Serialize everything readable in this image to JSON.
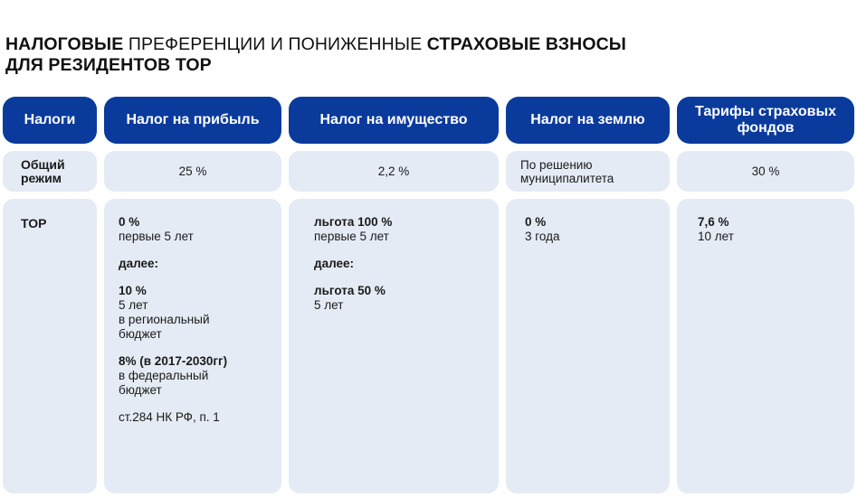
{
  "title": {
    "p1_bold": "НАЛОГОВЫЕ",
    "p2": " ПРЕФЕРЕНЦИИ И ПОНИЖЕННЫЕ ",
    "p3_bold": "СТРАХОВЫЕ ВЗНОСЫ",
    "line2_bold": "ДЛЯ РЕЗИДЕНТОВ ТОР"
  },
  "headers": {
    "col0": "Налоги",
    "col1": "Налог на прибыль",
    "col2": "Налог на имущество",
    "col3": "Налог на землю",
    "col4": "Тарифы страховых фондов"
  },
  "general": {
    "label": "Общий режим",
    "profit": "25 %",
    "property": "2,2 %",
    "land": "По решению муниципалитета",
    "insurance": "30 %"
  },
  "tor": {
    "label": "ТОР",
    "profit": {
      "b1_rate": "0 %",
      "b1_term": "первые 5 лет",
      "further": "далее:",
      "b2_rate": "10 %",
      "b2_term": "5 лет",
      "b2_note1": "в региональный",
      "b2_note2": "бюджет",
      "b3_rate": "8% (в 2017-2030гг)",
      "b3_note1": "в федеральный",
      "b3_note2": "бюджет",
      "ref": "ст.284 НК РФ, п. 1"
    },
    "property": {
      "b1_rate": "льгота 100 %",
      "b1_term": "первые 5 лет",
      "further": "далее:",
      "b2_rate": "льгота 50 %",
      "b2_term": "5 лет"
    },
    "land": {
      "rate": "0 %",
      "term": "3 года"
    },
    "insurance": {
      "rate": "7,6 %",
      "term": "10 лет"
    }
  },
  "colors": {
    "header_bg": "#0a3b9c",
    "cell_bg": "#e5ebf5"
  }
}
